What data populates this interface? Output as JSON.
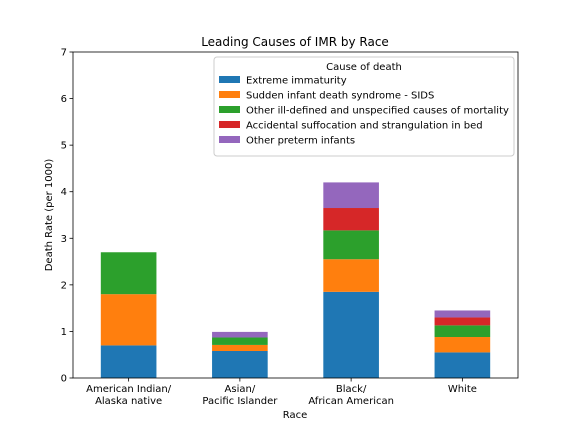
{
  "chart_data": {
    "type": "bar",
    "stacked": true,
    "title": "Leading Causes of IMR by Race",
    "xlabel": "Race",
    "ylabel": "Death Rate (per 1000)",
    "ylim": [
      0,
      7
    ],
    "yticks": [
      0,
      1,
      2,
      3,
      4,
      5,
      6,
      7
    ],
    "categories": [
      [
        "American Indian/",
        "Alaska native"
      ],
      [
        "Asian/",
        "Pacific Islander"
      ],
      [
        "Black/",
        "African American"
      ],
      [
        "White"
      ]
    ],
    "legend": {
      "title": "Cause of death",
      "placement": "upper-right"
    },
    "grid": false,
    "series": [
      {
        "name": "Extreme immaturity",
        "color": "#1f77b4",
        "values": [
          0.7,
          0.58,
          1.85,
          0.55
        ]
      },
      {
        "name": "Sudden infant death syndrome - SIDS",
        "color": "#ff7f0e",
        "values": [
          1.1,
          0.13,
          0.7,
          0.33
        ]
      },
      {
        "name": "Other ill-defined and unspecified causes of mortality",
        "color": "#2ca02c",
        "values": [
          0.9,
          0.16,
          0.62,
          0.25
        ]
      },
      {
        "name": "Accidental suffocation and strangulation in bed",
        "color": "#d62728",
        "values": [
          0.0,
          0.0,
          0.48,
          0.17
        ]
      },
      {
        "name": "Other preterm infants",
        "color": "#9467bd",
        "values": [
          0.0,
          0.12,
          0.55,
          0.15
        ]
      }
    ]
  }
}
